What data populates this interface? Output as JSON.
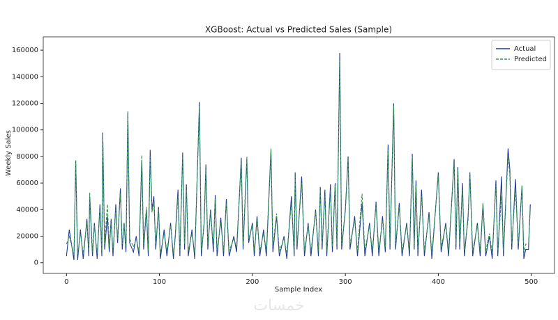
{
  "chart_data": {
    "type": "line",
    "title": "XGBoost: Actual vs Predicted Sales (Sample)",
    "xlabel": "Sample Index",
    "ylabel": "Weekly Sales",
    "legend": "upper right",
    "watermark": "خمسات",
    "xlim": [
      -25,
      525
    ],
    "xticks": [
      0,
      100,
      200,
      300,
      400,
      500
    ],
    "ylim": [
      -8000,
      170000
    ],
    "yticks": [
      0,
      20000,
      40000,
      60000,
      80000,
      100000,
      120000,
      140000,
      160000
    ],
    "x": [
      0,
      3,
      8,
      10,
      12,
      15,
      18,
      22,
      24,
      25,
      28,
      30,
      33,
      36,
      38,
      39,
      41,
      44,
      46,
      48,
      50,
      53,
      55,
      58,
      60,
      62,
      64,
      66,
      68,
      72,
      75,
      78,
      81,
      83,
      86,
      88,
      90,
      92,
      94,
      96,
      99,
      101,
      105,
      108,
      112,
      115,
      117,
      120,
      122,
      125,
      127,
      129,
      131,
      135,
      138,
      143,
      145,
      148,
      150,
      152,
      155,
      158,
      160,
      162,
      166,
      169,
      172,
      175,
      180,
      183,
      188,
      190,
      194,
      196,
      200,
      202,
      205,
      208,
      212,
      215,
      220,
      222,
      226,
      229,
      234,
      237,
      242,
      245,
      246,
      248,
      253,
      256,
      260,
      263,
      268,
      271,
      273,
      275,
      278,
      280,
      284,
      286,
      289,
      291,
      294,
      296,
      300,
      303,
      305,
      310,
      313,
      318,
      321,
      326,
      329,
      333,
      336,
      340,
      343,
      346,
      348,
      352,
      354,
      358,
      361,
      366,
      369,
      372,
      374,
      376,
      378,
      382,
      385,
      390,
      393,
      400,
      403,
      408,
      411,
      417,
      419,
      421,
      423,
      426,
      428,
      432,
      434,
      437,
      442,
      445,
      448,
      451,
      455,
      458,
      462,
      464,
      468,
      470,
      475,
      477,
      479,
      483,
      486,
      490,
      492,
      494,
      497,
      499
    ],
    "series": [
      {
        "name": "Actual",
        "color": "#24399a",
        "dash": false,
        "values": [
          5000,
          25000,
          2000,
          77000,
          2000,
          25000,
          3000,
          33000,
          5000,
          50000,
          5000,
          30000,
          3000,
          44000,
          5000,
          98000,
          10000,
          35000,
          8000,
          33000,
          5000,
          44000,
          15000,
          56000,
          10000,
          30000,
          8000,
          113000,
          15000,
          8000,
          20000,
          5000,
          77000,
          10000,
          40000,
          5000,
          85000,
          40000,
          50000,
          10000,
          42000,
          3000,
          25000,
          5000,
          30000,
          3000,
          20000,
          55000,
          5000,
          83000,
          10000,
          59000,
          5000,
          25000,
          3000,
          121000,
          5000,
          30000,
          74000,
          10000,
          40000,
          8000,
          51000,
          5000,
          34000,
          5000,
          48000,
          5000,
          20000,
          8000,
          79000,
          10000,
          78000,
          15000,
          30000,
          5000,
          35000,
          5000,
          25000,
          5000,
          85000,
          8000,
          35000,
          5000,
          20000,
          3000,
          50000,
          5000,
          68000,
          10000,
          65000,
          5000,
          30000,
          5000,
          40000,
          5000,
          57000,
          10000,
          55000,
          5000,
          59000,
          8000,
          60000,
          10000,
          158000,
          10000,
          40000,
          80000,
          10000,
          35000,
          5000,
          45000,
          5000,
          30000,
          5000,
          46000,
          5000,
          35000,
          8000,
          89000,
          10000,
          120000,
          10000,
          45000,
          5000,
          30000,
          5000,
          82000,
          10000,
          62000,
          5000,
          55000,
          5000,
          38000,
          3000,
          68000,
          8000,
          30000,
          5000,
          78000,
          10000,
          72000,
          10000,
          60000,
          5000,
          35000,
          68000,
          5000,
          30000,
          5000,
          44000,
          5000,
          20000,
          3000,
          62000,
          5000,
          65000,
          5000,
          86000,
          70000,
          10000,
          63000,
          10000,
          58000,
          3000,
          10000,
          10000,
          44000
        ]
      },
      {
        "name": "Predicted",
        "color": "#2f9a48",
        "dash": true,
        "values": [
          14000,
          20000,
          6000,
          77000,
          6000,
          22000,
          7000,
          30000,
          9000,
          53000,
          8000,
          28000,
          7000,
          40000,
          9000,
          97000,
          14000,
          44000,
          12000,
          30000,
          9000,
          40000,
          18000,
          52000,
          14000,
          28000,
          12000,
          114000,
          18000,
          12000,
          18000,
          9000,
          81000,
          14000,
          42000,
          9000,
          80000,
          38000,
          45000,
          14000,
          40000,
          7000,
          22000,
          9000,
          28000,
          7000,
          18000,
          50000,
          9000,
          80000,
          14000,
          55000,
          9000,
          22000,
          7000,
          118000,
          9000,
          28000,
          70000,
          14000,
          38000,
          12000,
          48000,
          9000,
          30000,
          9000,
          45000,
          9000,
          18000,
          12000,
          75000,
          14000,
          80000,
          18000,
          28000,
          9000,
          32000,
          9000,
          22000,
          9000,
          86000,
          12000,
          37000,
          9000,
          18000,
          7000,
          45000,
          9000,
          65000,
          14000,
          60000,
          9000,
          28000,
          9000,
          38000,
          9000,
          55000,
          14000,
          50000,
          9000,
          55000,
          12000,
          58000,
          14000,
          152000,
          14000,
          38000,
          78000,
          14000,
          32000,
          9000,
          52000,
          9000,
          28000,
          9000,
          44000,
          9000,
          32000,
          12000,
          85000,
          14000,
          118000,
          14000,
          42000,
          9000,
          28000,
          9000,
          80000,
          14000,
          58000,
          9000,
          50000,
          9000,
          35000,
          7000,
          66000,
          12000,
          28000,
          9000,
          75000,
          14000,
          70000,
          14000,
          55000,
          9000,
          32000,
          67000,
          9000,
          28000,
          9000,
          45000,
          9000,
          22000,
          7000,
          58000,
          9000,
          50000,
          9000,
          80000,
          65000,
          14000,
          55000,
          14000,
          58000,
          7000,
          14000,
          14000,
          40000
        ]
      }
    ]
  }
}
